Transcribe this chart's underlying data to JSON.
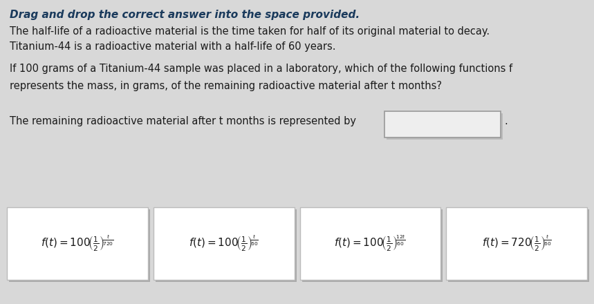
{
  "bg_color": "#d8d8d8",
  "title_line": "Drag and drop the correct answer into the space provided.",
  "line2": "The half-life of a radioactive material is the time taken for half of its original material to decay.",
  "line3": "Titanium-44 is a radioactive material with a half-life of 60 years.",
  "line4": "If 100 grams of a Titanium-44 sample was placed in a laboratory, which of the following functions f",
  "line5": "represents the mass, in grams, of the remaining radioactive material after t months?",
  "line6a": "The remaining radioactive material after t months is represented by",
  "card_bg": "#ffffff",
  "card_border": "#bbbbbb",
  "answer_box_bg": "#eeeeee",
  "answer_box_border": "#999999",
  "title_color": "#1a3a5c",
  "text_color": "#1a1a1a",
  "formulas": [
    {
      "coeff": "100",
      "exp_num": "t",
      "exp_den": "720"
    },
    {
      "coeff": "100",
      "exp_num": "t",
      "exp_den": "60"
    },
    {
      "coeff": "100",
      "exp_num": "12t",
      "exp_den": "60"
    },
    {
      "coeff": "720",
      "exp_num": "t",
      "exp_den": "60"
    }
  ]
}
